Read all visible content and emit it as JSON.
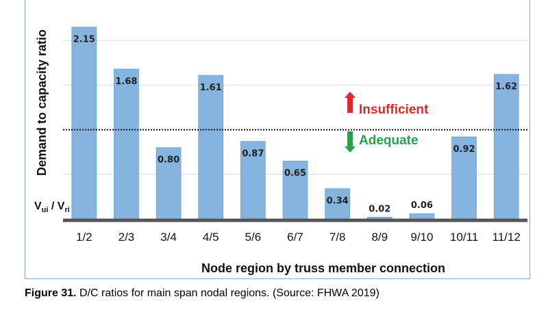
{
  "chart_data": {
    "type": "bar",
    "categories": [
      "1/2",
      "2/3",
      "3/4",
      "4/5",
      "5/6",
      "6/7",
      "7/8",
      "8/9",
      "9/10",
      "10/11",
      "11/12"
    ],
    "values": [
      2.15,
      1.68,
      0.8,
      1.61,
      0.87,
      0.65,
      0.34,
      0.02,
      0.06,
      0.92,
      1.62
    ],
    "value_labels": [
      "2.15",
      "1.68",
      "0.80",
      "1.61",
      "0.87",
      "0.65",
      "0.34",
      "0.02",
      "0.06",
      "0.92",
      "1.62"
    ],
    "xlabel": "Node region by truss member connection",
    "ylabel": "Demand to capacity ratio",
    "ylabel_sub": {
      "base1": "V",
      "sub1": "ui",
      "sep": " / ",
      "base2": "V",
      "sub2": "ri"
    },
    "ylim": [
      0,
      2.3
    ],
    "reference_line": {
      "value": 1.0,
      "style": "dotted",
      "color": "#111111"
    },
    "grid": true,
    "gridline_values": [
      0.5,
      1.5,
      2.0
    ],
    "bar_color": "#85b4df",
    "bar_edge_color": "#5b93c9",
    "annotations": [
      {
        "text": "Insufficient",
        "color": "#e8242b",
        "arrow": "up"
      },
      {
        "text": "Adequate",
        "color": "#22a34a",
        "arrow": "down"
      }
    ]
  },
  "caption": {
    "label": "Figure 31.",
    "text": " D/C ratios for main span nodal regions. (Source: FHWA 2019)"
  }
}
